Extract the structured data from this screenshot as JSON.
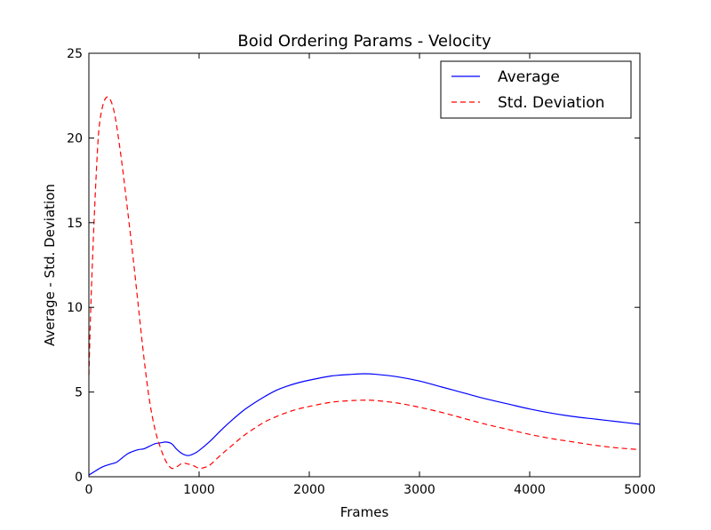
{
  "chart_data": {
    "type": "line",
    "title": "Boid Ordering Params - Velocity",
    "xlabel": "Frames",
    "ylabel": "Average - Std. Deviation",
    "xlim": [
      0,
      5000
    ],
    "ylim": [
      0,
      25
    ],
    "x_ticks": [
      0,
      1000,
      2000,
      3000,
      4000,
      5000
    ],
    "y_ticks": [
      0,
      5,
      10,
      15,
      20,
      25
    ],
    "grid": false,
    "legend_position": "top-right",
    "series": [
      {
        "name": "Average",
        "color": "#0000ff",
        "style": "solid",
        "x": [
          0,
          50,
          100,
          150,
          200,
          250,
          300,
          350,
          400,
          450,
          500,
          550,
          600,
          650,
          700,
          750,
          800,
          850,
          900,
          950,
          1000,
          1100,
          1200,
          1300,
          1400,
          1500,
          1600,
          1700,
          1800,
          1900,
          2000,
          2200,
          2400,
          2500,
          2600,
          2800,
          3000,
          3200,
          3400,
          3600,
          3800,
          4000,
          4200,
          4400,
          4600,
          4800,
          5000
        ],
        "y": [
          0.1,
          0.3,
          0.5,
          0.65,
          0.75,
          0.85,
          1.1,
          1.35,
          1.5,
          1.6,
          1.65,
          1.8,
          1.95,
          2.0,
          2.05,
          1.95,
          1.6,
          1.35,
          1.25,
          1.35,
          1.55,
          2.1,
          2.75,
          3.35,
          3.9,
          4.35,
          4.75,
          5.1,
          5.35,
          5.55,
          5.7,
          5.95,
          6.05,
          6.08,
          6.05,
          5.9,
          5.65,
          5.3,
          4.95,
          4.6,
          4.3,
          4.0,
          3.75,
          3.55,
          3.4,
          3.25,
          3.1
        ]
      },
      {
        "name": "Std. Deviation",
        "color": "#ff0000",
        "style": "dashed",
        "x": [
          0,
          20,
          50,
          80,
          100,
          130,
          160,
          190,
          220,
          250,
          300,
          350,
          400,
          450,
          500,
          550,
          600,
          650,
          700,
          750,
          800,
          850,
          900,
          950,
          1000,
          1050,
          1100,
          1200,
          1300,
          1400,
          1500,
          1600,
          1700,
          1800,
          1900,
          2000,
          2200,
          2400,
          2500,
          2600,
          2800,
          3000,
          3200,
          3400,
          3600,
          3800,
          4000,
          4200,
          4400,
          4600,
          4800,
          5000
        ],
        "y": [
          6.0,
          10.5,
          15.5,
          19.5,
          21.0,
          22.0,
          22.4,
          22.3,
          21.8,
          20.8,
          18.5,
          15.8,
          13.0,
          10.0,
          7.0,
          4.5,
          2.8,
          1.7,
          0.9,
          0.5,
          0.6,
          0.8,
          0.75,
          0.65,
          0.5,
          0.55,
          0.7,
          1.3,
          1.85,
          2.4,
          2.85,
          3.25,
          3.55,
          3.8,
          4.0,
          4.15,
          4.4,
          4.5,
          4.52,
          4.5,
          4.35,
          4.1,
          3.8,
          3.45,
          3.1,
          2.8,
          2.5,
          2.25,
          2.05,
          1.85,
          1.7,
          1.6
        ]
      }
    ]
  }
}
